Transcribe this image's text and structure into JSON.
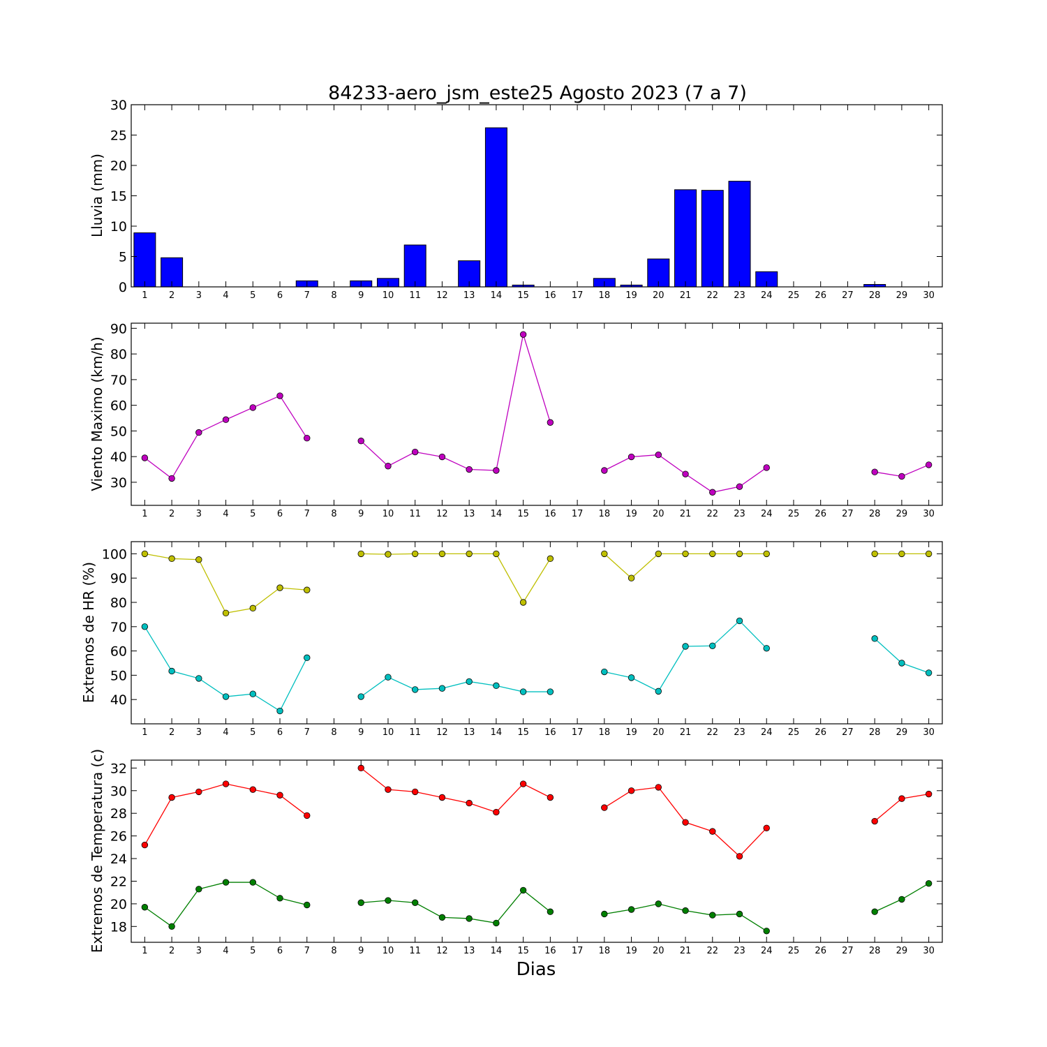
{
  "figure": {
    "title": "84233-aero_jsm_este25 Agosto 2023  (7 a 7)",
    "xlabel": "Dias"
  },
  "chart_data": [
    {
      "type": "bar",
      "ylabel": "Lluvia (mm)",
      "color": "#0000ff",
      "edge_color": "#000000",
      "ylim": [
        0,
        30
      ],
      "yticks": [
        0,
        5,
        10,
        15,
        20,
        25,
        30
      ],
      "categories": [
        1,
        2,
        3,
        4,
        5,
        6,
        7,
        8,
        9,
        10,
        11,
        12,
        13,
        14,
        15,
        16,
        17,
        18,
        19,
        20,
        21,
        22,
        23,
        24,
        25,
        26,
        27,
        28,
        29,
        30
      ],
      "values": [
        8.9,
        4.8,
        0,
        0,
        0,
        0,
        1.0,
        null,
        1.0,
        1.4,
        6.9,
        null,
        4.3,
        26.2,
        0.3,
        0,
        null,
        1.4,
        0.3,
        4.6,
        16.0,
        15.9,
        17.4,
        2.5,
        null,
        null,
        null,
        0.4,
        0,
        null
      ],
      "grid": false
    },
    {
      "type": "line",
      "ylabel": "Viento Maximo (km/h)",
      "ylim": [
        21,
        92
      ],
      "yticks": [
        30,
        40,
        50,
        60,
        70,
        80,
        90
      ],
      "categories": [
        1,
        2,
        3,
        4,
        5,
        6,
        7,
        8,
        9,
        10,
        11,
        12,
        13,
        14,
        15,
        16,
        17,
        18,
        19,
        20,
        21,
        22,
        23,
        24,
        25,
        26,
        27,
        28,
        29,
        30
      ],
      "series": [
        {
          "color": "#bf00bf",
          "values": [
            39.5,
            31.5,
            49.4,
            54.4,
            59.1,
            63.7,
            47.2,
            null,
            46.1,
            36.3,
            41.8,
            39.9,
            35.0,
            34.6,
            87.6,
            53.3,
            null,
            34.6,
            39.9,
            40.7,
            33.2,
            26.1,
            28.3,
            35.7,
            null,
            null,
            null,
            34.0,
            32.3,
            36.8
          ]
        }
      ],
      "grid": false
    },
    {
      "type": "line",
      "ylabel": "Extremos de HR (%)",
      "ylim": [
        30,
        105
      ],
      "yticks": [
        40,
        50,
        60,
        70,
        80,
        90,
        100
      ],
      "categories": [
        1,
        2,
        3,
        4,
        5,
        6,
        7,
        8,
        9,
        10,
        11,
        12,
        13,
        14,
        15,
        16,
        17,
        18,
        19,
        20,
        21,
        22,
        23,
        24,
        25,
        26,
        27,
        28,
        29,
        30
      ],
      "series": [
        {
          "color": "#bfbf00",
          "values": [
            100,
            98,
            97.6,
            75.6,
            77.6,
            86,
            85.1,
            null,
            100,
            99.8,
            100,
            100,
            100,
            100,
            80,
            98,
            null,
            100,
            90,
            100,
            100,
            100,
            100,
            100,
            null,
            null,
            null,
            100,
            100,
            100
          ]
        },
        {
          "color": "#00bfbf",
          "values": [
            70,
            51.7,
            48.7,
            41.2,
            42.3,
            35.3,
            57.2,
            null,
            41.2,
            49.2,
            44.1,
            44.6,
            47.4,
            45.7,
            43.2,
            43.2,
            null,
            51.4,
            49,
            43.4,
            61.9,
            62.1,
            72.4,
            61.1,
            null,
            null,
            null,
            65.1,
            55,
            51
          ]
        }
      ],
      "grid": false
    },
    {
      "type": "line",
      "ylabel": "Extremos de Temperatura (c)",
      "ylim": [
        16.6,
        32.7
      ],
      "yticks": [
        18,
        20,
        22,
        24,
        26,
        28,
        30,
        32
      ],
      "categories": [
        1,
        2,
        3,
        4,
        5,
        6,
        7,
        8,
        9,
        10,
        11,
        12,
        13,
        14,
        15,
        16,
        17,
        18,
        19,
        20,
        21,
        22,
        23,
        24,
        25,
        26,
        27,
        28,
        29,
        30
      ],
      "series": [
        {
          "color": "#ff0000",
          "values": [
            25.2,
            29.4,
            29.9,
            30.6,
            30.1,
            29.6,
            27.8,
            null,
            32,
            30.1,
            29.9,
            29.4,
            28.9,
            28.1,
            30.6,
            29.4,
            null,
            28.5,
            30,
            30.3,
            27.2,
            26.4,
            24.2,
            26.7,
            null,
            null,
            null,
            27.3,
            29.3,
            29.7
          ]
        },
        {
          "color": "#007f00",
          "values": [
            19.7,
            18,
            21.3,
            21.9,
            21.9,
            20.5,
            19.9,
            null,
            20.1,
            20.3,
            20.1,
            18.8,
            18.7,
            18.3,
            21.2,
            19.3,
            null,
            19.1,
            19.5,
            20,
            19.4,
            19,
            19.1,
            17.6,
            null,
            null,
            null,
            19.3,
            20.4,
            21.8
          ]
        }
      ],
      "grid": false
    }
  ]
}
